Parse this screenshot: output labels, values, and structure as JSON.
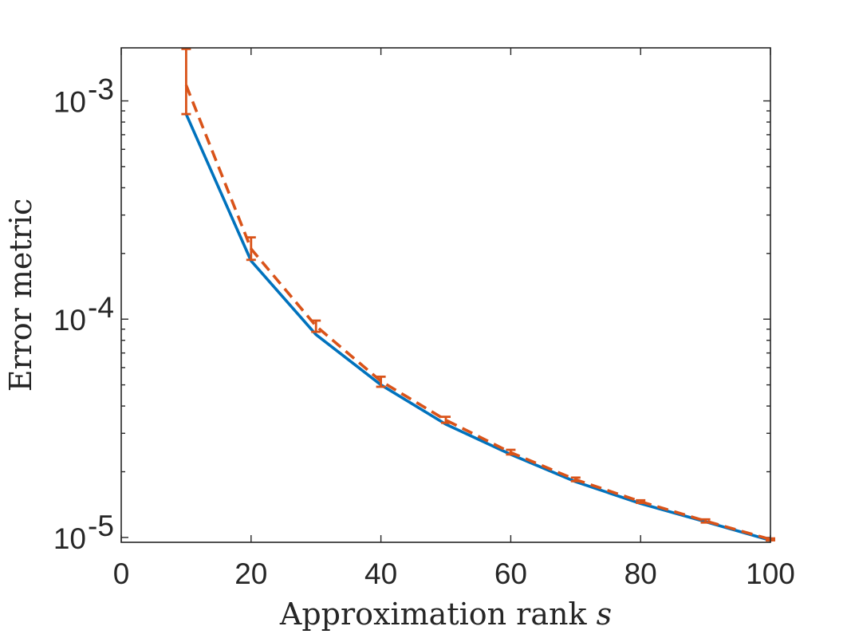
{
  "chart_data": {
    "type": "line",
    "title": "",
    "xlabel": "Approximation rank ",
    "xlabel_symbol": "s",
    "ylabel": "Error metric",
    "xlim": [
      0,
      100
    ],
    "ylim": [
      9.5e-06,
      0.00175
    ],
    "yscale": "log",
    "grid": false,
    "x_ticks": [
      0,
      20,
      40,
      60,
      80,
      100
    ],
    "x_tick_labels": [
      "0",
      "20",
      "40",
      "60",
      "80",
      "100"
    ],
    "y_ticks": [
      1e-05,
      0.0001,
      0.001
    ],
    "y_tick_labels": [
      {
        "base": "10",
        "exp": "-5"
      },
      {
        "base": "10",
        "exp": "-4"
      },
      {
        "base": "10",
        "exp": "-3"
      }
    ],
    "x": [
      10,
      20,
      30,
      40,
      50,
      60,
      70,
      80,
      90,
      100
    ],
    "series": [
      {
        "style": "solid",
        "color": "#0072BD",
        "values": [
          0.00087,
          0.000185,
          8.5e-05,
          5e-05,
          3.3e-05,
          2.4e-05,
          1.8e-05,
          1.43e-05,
          1.18e-05,
          9.7e-06
        ]
      },
      {
        "style": "dashed",
        "color": "#D95319",
        "values": [
          0.00118,
          0.00021,
          9.3e-05,
          5.2e-05,
          3.45e-05,
          2.45e-05,
          1.84e-05,
          1.46e-05,
          1.19e-05,
          9.8e-06
        ],
        "error_low": [
          0.00087,
          0.000187,
          8.75e-05,
          4.9e-05,
          3.35e-05,
          2.4e-05,
          1.81e-05,
          1.44e-05,
          1.17e-05,
          9.7e-06
        ],
        "error_high": [
          0.00173,
          0.000237,
          9.85e-05,
          5.45e-05,
          3.57e-05,
          2.52e-05,
          1.88e-05,
          1.48e-05,
          1.21e-05,
          9.9e-06
        ]
      }
    ]
  }
}
